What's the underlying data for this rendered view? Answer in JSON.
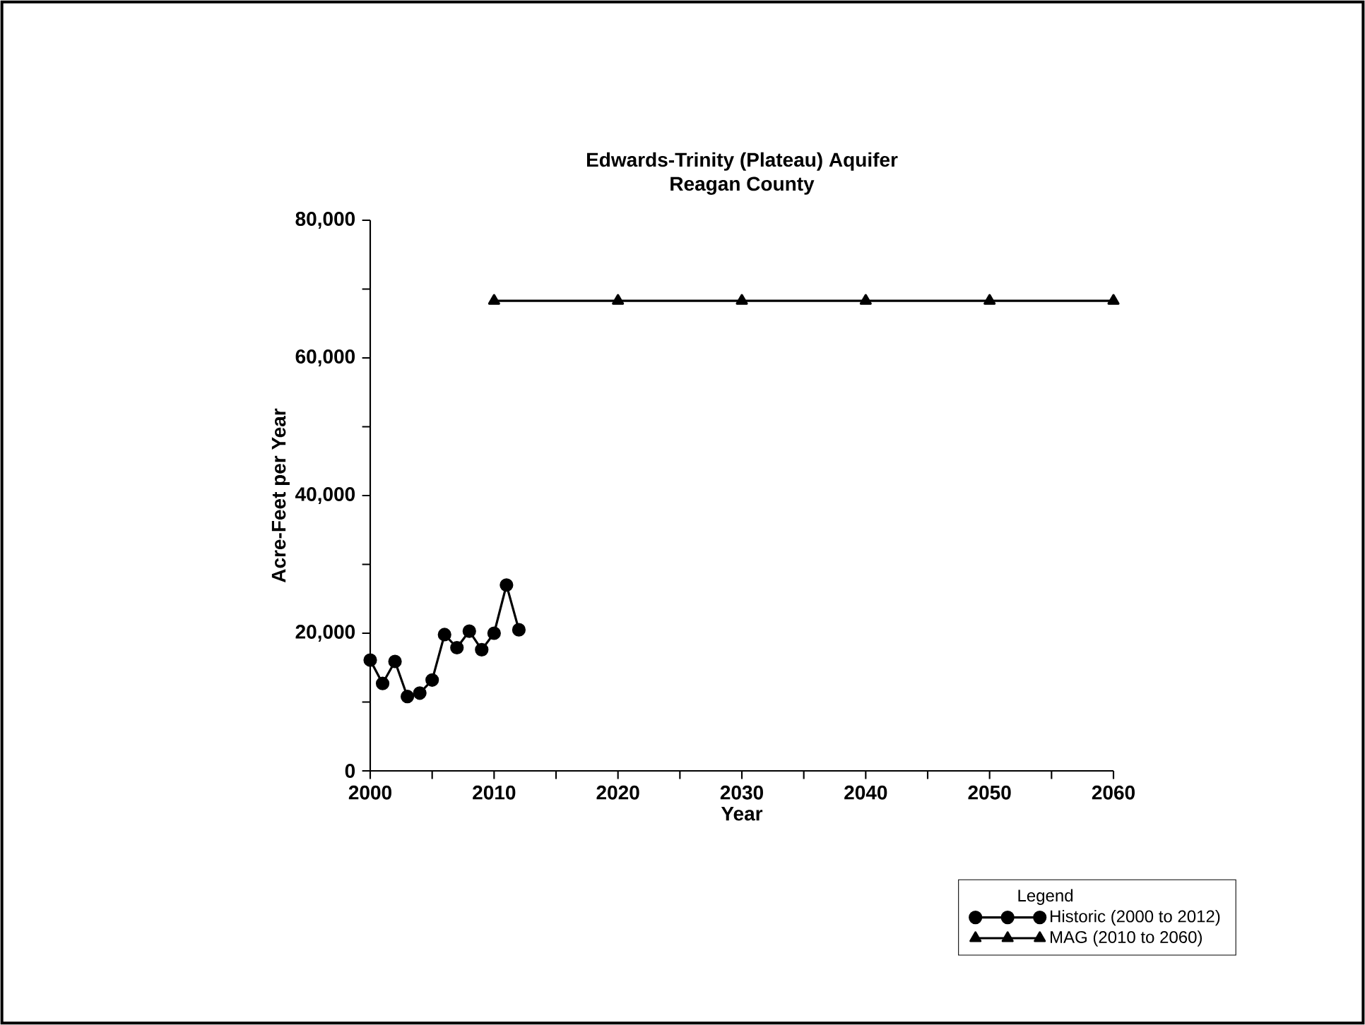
{
  "chart_data": {
    "type": "line",
    "title": "Edwards-Trinity (Plateau) Aquifer",
    "subtitle": "Reagan County",
    "xlabel": "Year",
    "ylabel": "Acre-Feet per Year",
    "legend_title": "Legend",
    "xlim": [
      2000,
      2060
    ],
    "ylim": [
      0,
      80000
    ],
    "xticks": [
      2000,
      {
        "value": 2005,
        "label": null
      },
      2010,
      {
        "value": 2015,
        "label": null
      },
      2020,
      {
        "value": 2025,
        "label": null
      },
      2030,
      {
        "value": 2035,
        "label": null
      },
      2040,
      {
        "value": 2045,
        "label": null
      },
      2050,
      {
        "value": 2055,
        "label": null
      },
      2060
    ],
    "yticks": [
      {
        "value": 0,
        "label": "0"
      },
      {
        "value": 10000,
        "label": null
      },
      {
        "value": 20000,
        "label": "20,000"
      },
      {
        "value": 30000,
        "label": null
      },
      {
        "value": 40000,
        "label": "40,000"
      },
      {
        "value": 50000,
        "label": null
      },
      {
        "value": 60000,
        "label": "60,000"
      },
      {
        "value": 70000,
        "label": null
      },
      {
        "value": 80000,
        "label": "80,000"
      }
    ],
    "grid": false,
    "legend": "bottom right",
    "line_style": "solid",
    "series": [
      {
        "name": "Historic (2000 to 2012)",
        "color": "#000000",
        "marker": "circle",
        "x": [
          2000,
          2001,
          2002,
          2003,
          2004,
          2005,
          2006,
          2007,
          2008,
          2009,
          2010,
          2011,
          2012
        ],
        "values": [
          16100,
          12700,
          15900,
          10800,
          11300,
          13200,
          19800,
          17900,
          20300,
          17600,
          20000,
          27000,
          20500
        ]
      },
      {
        "name": "MAG (2010 to 2060)",
        "color": "#000000",
        "marker": "triangle",
        "x": [
          2010,
          2020,
          2030,
          2040,
          2050,
          2060
        ],
        "values": [
          68300,
          68300,
          68300,
          68300,
          68300,
          68300
        ]
      }
    ]
  }
}
